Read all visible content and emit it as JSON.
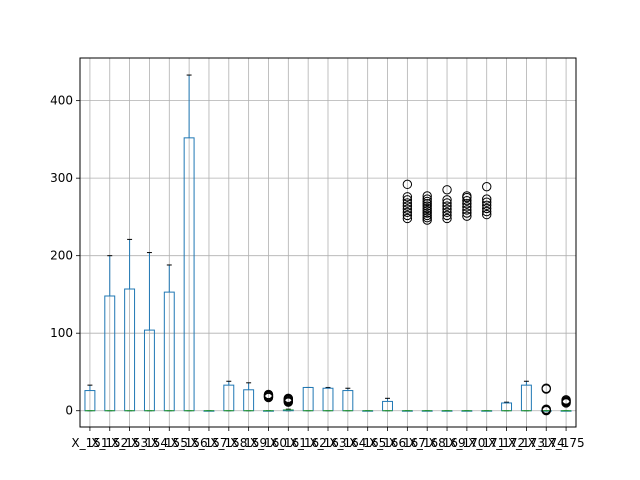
{
  "chart_data": {
    "type": "box",
    "grid": true,
    "ylim": [
      -21,
      455
    ],
    "yticks": [
      0,
      100,
      200,
      300,
      400
    ],
    "colors": {
      "box": "#1f77b4",
      "median": "#2ca02c",
      "whisker": "#000000",
      "flier": "#000000",
      "grid": "#b0b0b0"
    },
    "categories": [
      "X_151",
      "X_152",
      "X_153",
      "X_154",
      "X_155",
      "X_156",
      "X_157",
      "X_158",
      "X_159",
      "X_160",
      "X_161",
      "X_162",
      "X_163",
      "X_164",
      "X_165",
      "X_166",
      "X_167",
      "X_168",
      "X_169",
      "X_170",
      "X_171",
      "X_172",
      "X_173",
      "X_174",
      "X_175"
    ],
    "boxes": [
      {
        "q1": 0,
        "median": 0,
        "q3": 26,
        "whislo": 0,
        "whishi": 33,
        "fliers": []
      },
      {
        "q1": 0,
        "median": 0,
        "q3": 148,
        "whislo": 0,
        "whishi": 200,
        "fliers": []
      },
      {
        "q1": 0,
        "median": 0,
        "q3": 157,
        "whislo": 0,
        "whishi": 221,
        "fliers": []
      },
      {
        "q1": 0,
        "median": 0,
        "q3": 104,
        "whislo": 0,
        "whishi": 204,
        "fliers": []
      },
      {
        "q1": 0,
        "median": 0,
        "q3": 153,
        "whislo": 0,
        "whishi": 188,
        "fliers": []
      },
      {
        "q1": 0,
        "median": 0,
        "q3": 352,
        "whislo": 0,
        "whishi": 433,
        "fliers": []
      },
      {
        "q1": 0,
        "median": 0,
        "q3": 0,
        "whislo": 0,
        "whishi": 0,
        "fliers": []
      },
      {
        "q1": 0,
        "median": 0,
        "q3": 33,
        "whislo": 0,
        "whishi": 38,
        "fliers": []
      },
      {
        "q1": 0,
        "median": 0,
        "q3": 27,
        "whislo": 0,
        "whishi": 36,
        "fliers": []
      },
      {
        "q1": 0,
        "median": 0,
        "q3": 0,
        "whislo": 0,
        "whishi": 0,
        "fliers": [
          17,
          18,
          19,
          20,
          21
        ]
      },
      {
        "q1": 0,
        "median": 1,
        "q3": 1,
        "whislo": 0,
        "whishi": 2,
        "fliers": [
          11,
          12,
          13,
          14,
          15,
          16
        ]
      },
      {
        "q1": 0,
        "median": 0,
        "q3": 30,
        "whislo": 0,
        "whishi": 30,
        "fliers": []
      },
      {
        "q1": 0,
        "median": 0,
        "q3": 29,
        "whislo": 0,
        "whishi": 30,
        "fliers": []
      },
      {
        "q1": 0,
        "median": 0,
        "q3": 26,
        "whislo": 0,
        "whishi": 29,
        "fliers": []
      },
      {
        "q1": 0,
        "median": 0,
        "q3": 0,
        "whislo": 0,
        "whishi": 0,
        "fliers": []
      },
      {
        "q1": 0,
        "median": 0,
        "q3": 12,
        "whislo": 0,
        "whishi": 16,
        "fliers": []
      },
      {
        "q1": 0,
        "median": 0,
        "q3": 0,
        "whislo": 0,
        "whishi": 0,
        "fliers": [
          248,
          252,
          256,
          260,
          264,
          268,
          272,
          276,
          292
        ]
      },
      {
        "q1": 0,
        "median": 0,
        "q3": 0,
        "whislo": 0,
        "whishi": 0,
        "fliers": [
          246,
          249,
          252,
          255,
          258,
          261,
          264,
          267,
          270,
          273,
          277
        ]
      },
      {
        "q1": 0,
        "median": 0,
        "q3": 0,
        "whislo": 0,
        "whishi": 0,
        "fliers": [
          248,
          252,
          256,
          260,
          264,
          268,
          272,
          285
        ]
      },
      {
        "q1": 0,
        "median": 0,
        "q3": 0,
        "whislo": 0,
        "whishi": 0,
        "fliers": [
          251,
          255,
          259,
          263,
          267,
          271,
          275,
          277
        ]
      },
      {
        "q1": 0,
        "median": 0,
        "q3": 0,
        "whislo": 0,
        "whishi": 0,
        "fliers": [
          253,
          257,
          261,
          265,
          269,
          273,
          289
        ]
      },
      {
        "q1": 0,
        "median": 0,
        "q3": 10,
        "whislo": 0,
        "whishi": 11,
        "fliers": []
      },
      {
        "q1": 0,
        "median": 0,
        "q3": 33,
        "whislo": 0,
        "whishi": 38,
        "fliers": []
      },
      {
        "q1": 0,
        "median": 0,
        "q3": 0,
        "whislo": 0,
        "whishi": 0,
        "fliers": [
          0,
          1,
          2,
          28,
          29
        ]
      },
      {
        "q1": 0,
        "median": 0,
        "q3": 0,
        "whislo": 0,
        "whishi": 0,
        "fliers": [
          10,
          11,
          12,
          13,
          14
        ]
      }
    ]
  }
}
